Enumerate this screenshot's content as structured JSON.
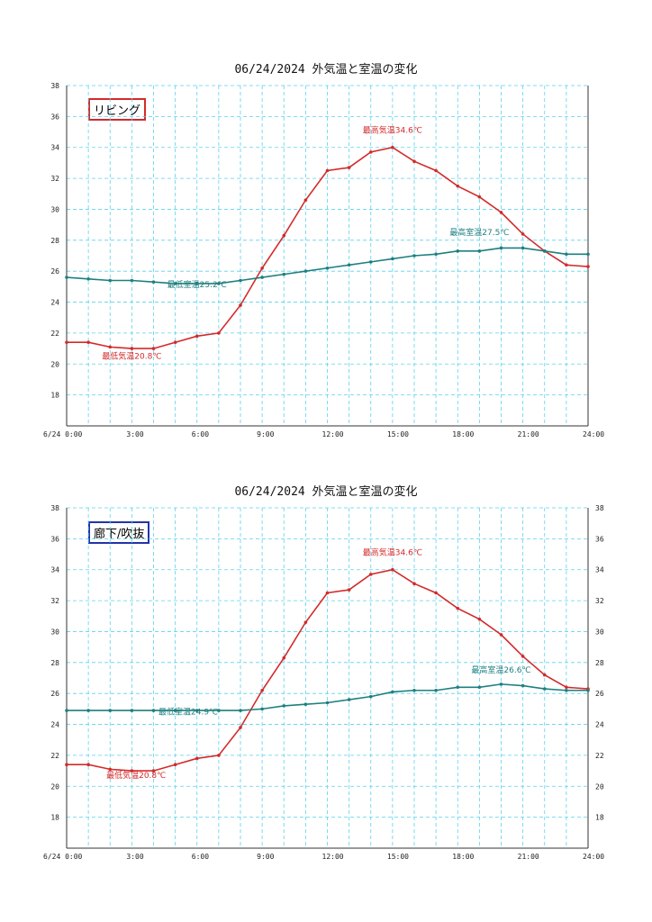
{
  "colors": {
    "outdoor": "#d42a2a",
    "room": "#1f7f7f",
    "grid": "#5ad2ee",
    "axis": "#333333",
    "label_border_1": "#d42a2a",
    "label_border_2": "#2233aa"
  },
  "chart_data": [
    {
      "type": "line",
      "title": "06/24/2024 外気温と室温の変化",
      "room_label": "リビング",
      "right_axis": false,
      "x_tick_labels": [
        "6/24 0:00",
        "3:00",
        "6:00",
        "9:00",
        "12:00",
        "15:00",
        "18:00",
        "21:00",
        "24:00"
      ],
      "x_ticks": [
        0,
        3,
        6,
        9,
        12,
        15,
        18,
        21,
        24
      ],
      "xlim": [
        0,
        24
      ],
      "y_ticks": [
        18,
        20,
        22,
        24,
        26,
        28,
        30,
        32,
        34,
        36,
        38
      ],
      "ylim": [
        16,
        38
      ],
      "grid": true,
      "series": [
        {
          "key": "outdoor",
          "x": [
            0,
            1,
            2,
            3,
            4,
            5,
            6,
            7,
            8,
            9,
            10,
            11,
            12,
            13,
            14,
            15,
            16,
            17,
            18,
            19,
            20,
            21,
            22,
            23,
            24
          ],
          "values": [
            21.4,
            21.4,
            21.1,
            21.0,
            21.0,
            21.4,
            21.8,
            22.0,
            23.8,
            26.2,
            28.3,
            30.6,
            32.5,
            32.7,
            33.7,
            34.0,
            33.1,
            32.5,
            31.5,
            30.8,
            29.8,
            28.4,
            27.3,
            26.4,
            26.3
          ]
        },
        {
          "key": "room",
          "x": [
            0,
            1,
            2,
            3,
            4,
            5,
            6,
            7,
            8,
            9,
            10,
            11,
            12,
            13,
            14,
            15,
            16,
            17,
            18,
            19,
            20,
            21,
            22,
            23,
            24
          ],
          "values": [
            25.6,
            25.5,
            25.4,
            25.4,
            25.3,
            25.2,
            25.2,
            25.2,
            25.4,
            25.6,
            25.8,
            26.0,
            26.2,
            26.4,
            26.6,
            26.8,
            27.0,
            27.1,
            27.3,
            27.3,
            27.5,
            27.5,
            27.3,
            27.1,
            27.1
          ]
        }
      ],
      "annotations": [
        {
          "text": "最高気温34.6℃",
          "x": 15.0,
          "y": 34.6,
          "series": "outdoor"
        },
        {
          "text": "最低気温20.8℃",
          "x": 3.0,
          "y": 20.0,
          "series": "outdoor"
        },
        {
          "text": "最高室温27.5℃",
          "x": 19.0,
          "y": 28.0,
          "series": "room"
        },
        {
          "text": "最低室温25.2℃",
          "x": 6.0,
          "y": 24.6,
          "series": "room"
        }
      ]
    },
    {
      "type": "line",
      "title": "06/24/2024 外気温と室温の変化",
      "room_label": "廊下/吹抜",
      "right_axis": true,
      "x_tick_labels": [
        "6/24 0:00",
        "3:00",
        "6:00",
        "9:00",
        "12:00",
        "15:00",
        "18:00",
        "21:00",
        "24:00"
      ],
      "x_ticks": [
        0,
        3,
        6,
        9,
        12,
        15,
        18,
        21,
        24
      ],
      "xlim": [
        0,
        24
      ],
      "y_ticks": [
        18,
        20,
        22,
        24,
        26,
        28,
        30,
        32,
        34,
        36,
        38
      ],
      "ylim": [
        16,
        38
      ],
      "grid": true,
      "series": [
        {
          "key": "outdoor",
          "x": [
            0,
            1,
            2,
            3,
            4,
            5,
            6,
            7,
            8,
            9,
            10,
            11,
            12,
            13,
            14,
            15,
            16,
            17,
            18,
            19,
            20,
            21,
            22,
            23,
            24
          ],
          "values": [
            21.4,
            21.4,
            21.1,
            21.0,
            21.0,
            21.4,
            21.8,
            22.0,
            23.8,
            26.2,
            28.3,
            30.6,
            32.5,
            32.7,
            33.7,
            34.0,
            33.1,
            32.5,
            31.5,
            30.8,
            29.8,
            28.4,
            27.2,
            26.4,
            26.3
          ]
        },
        {
          "key": "room",
          "x": [
            0,
            1,
            2,
            3,
            4,
            5,
            6,
            7,
            8,
            9,
            10,
            11,
            12,
            13,
            14,
            15,
            16,
            17,
            18,
            19,
            20,
            21,
            22,
            23,
            24
          ],
          "values": [
            24.9,
            24.9,
            24.9,
            24.9,
            24.9,
            24.9,
            24.9,
            24.9,
            24.9,
            25.0,
            25.2,
            25.3,
            25.4,
            25.6,
            25.8,
            26.1,
            26.2,
            26.2,
            26.4,
            26.4,
            26.6,
            26.5,
            26.3,
            26.2,
            26.2
          ]
        }
      ],
      "annotations": [
        {
          "text": "最高気温34.6℃",
          "x": 15.0,
          "y": 34.6,
          "series": "outdoor"
        },
        {
          "text": "最低気温20.8℃",
          "x": 3.2,
          "y": 20.2,
          "series": "outdoor"
        },
        {
          "text": "最高室温26.6℃",
          "x": 20.0,
          "y": 27.0,
          "series": "room"
        },
        {
          "text": "最低室温24.9℃",
          "x": 5.6,
          "y": 24.3,
          "series": "room"
        }
      ]
    }
  ]
}
